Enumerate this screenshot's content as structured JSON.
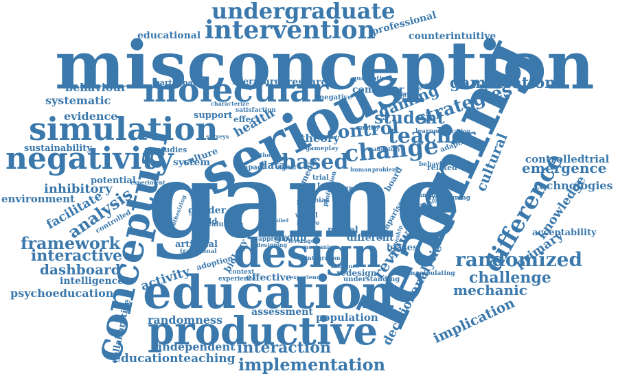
{
  "colors": {
    "word": "#3b79ad",
    "background": "#ffffff"
  },
  "words": [
    "game",
    "learning",
    "misconception",
    "serious",
    "education",
    "productive",
    "design",
    "conceptual",
    "simulation",
    "molecular",
    "negativity",
    "intervention",
    "undergraduate",
    "based",
    "change",
    "teacher",
    "control",
    "randomized",
    "difference",
    "strategies",
    "student",
    "gaming",
    "gamification",
    "implementation",
    "interaction",
    "review",
    "analysis",
    "framework",
    "interactive",
    "dashboard",
    "challenge",
    "mechanic",
    "implication",
    "decisionanalytic",
    "cultural",
    "primary",
    "knowledge",
    "emergence",
    "technologies",
    "controlledtrial",
    "acceptability",
    "educationteaching",
    "independent",
    "randomness",
    "population",
    "assessment",
    "effective",
    "activity",
    "collaborative",
    "psychoeducation",
    "intelligence",
    "artificial",
    "adoption",
    "biology",
    "gender",
    "facilitate",
    "inhibitory",
    "environment",
    "potential",
    "controlled",
    "sustainability",
    "evidence",
    "systematic",
    "behaviour",
    "participant",
    "literature",
    "research",
    "computer",
    "professional",
    "counterintuitive",
    "educational",
    "health",
    "theory",
    "support",
    "effect",
    "culture",
    "studies",
    "system",
    "data",
    "child",
    "group",
    "model",
    "different",
    "comparison",
    "biases",
    "board",
    "related",
    "adaptive",
    "application",
    "learner",
    "quality",
    "negative",
    "qualitative",
    "redesign",
    "context",
    "experience",
    "trial",
    "test",
    "media",
    "visual",
    "level",
    "bias",
    "human",
    "problem",
    "impact",
    "satisfaction",
    "characterize",
    "mandatory",
    "environmental",
    "increase",
    "positive",
    "understanding",
    "manipulating",
    "redesigning",
    "controlled",
    "traditional",
    "experiment",
    "evaluation",
    "nature",
    "gameplay",
    "profession",
    "relationship",
    "influence",
    "canadian",
    "examining",
    "behavior",
    "applying",
    "designing",
    "mechanism",
    "leverage",
    "synthesizing",
    "integration",
    "experienced",
    "estimation",
    "surveys",
    "digital",
    "method"
  ]
}
